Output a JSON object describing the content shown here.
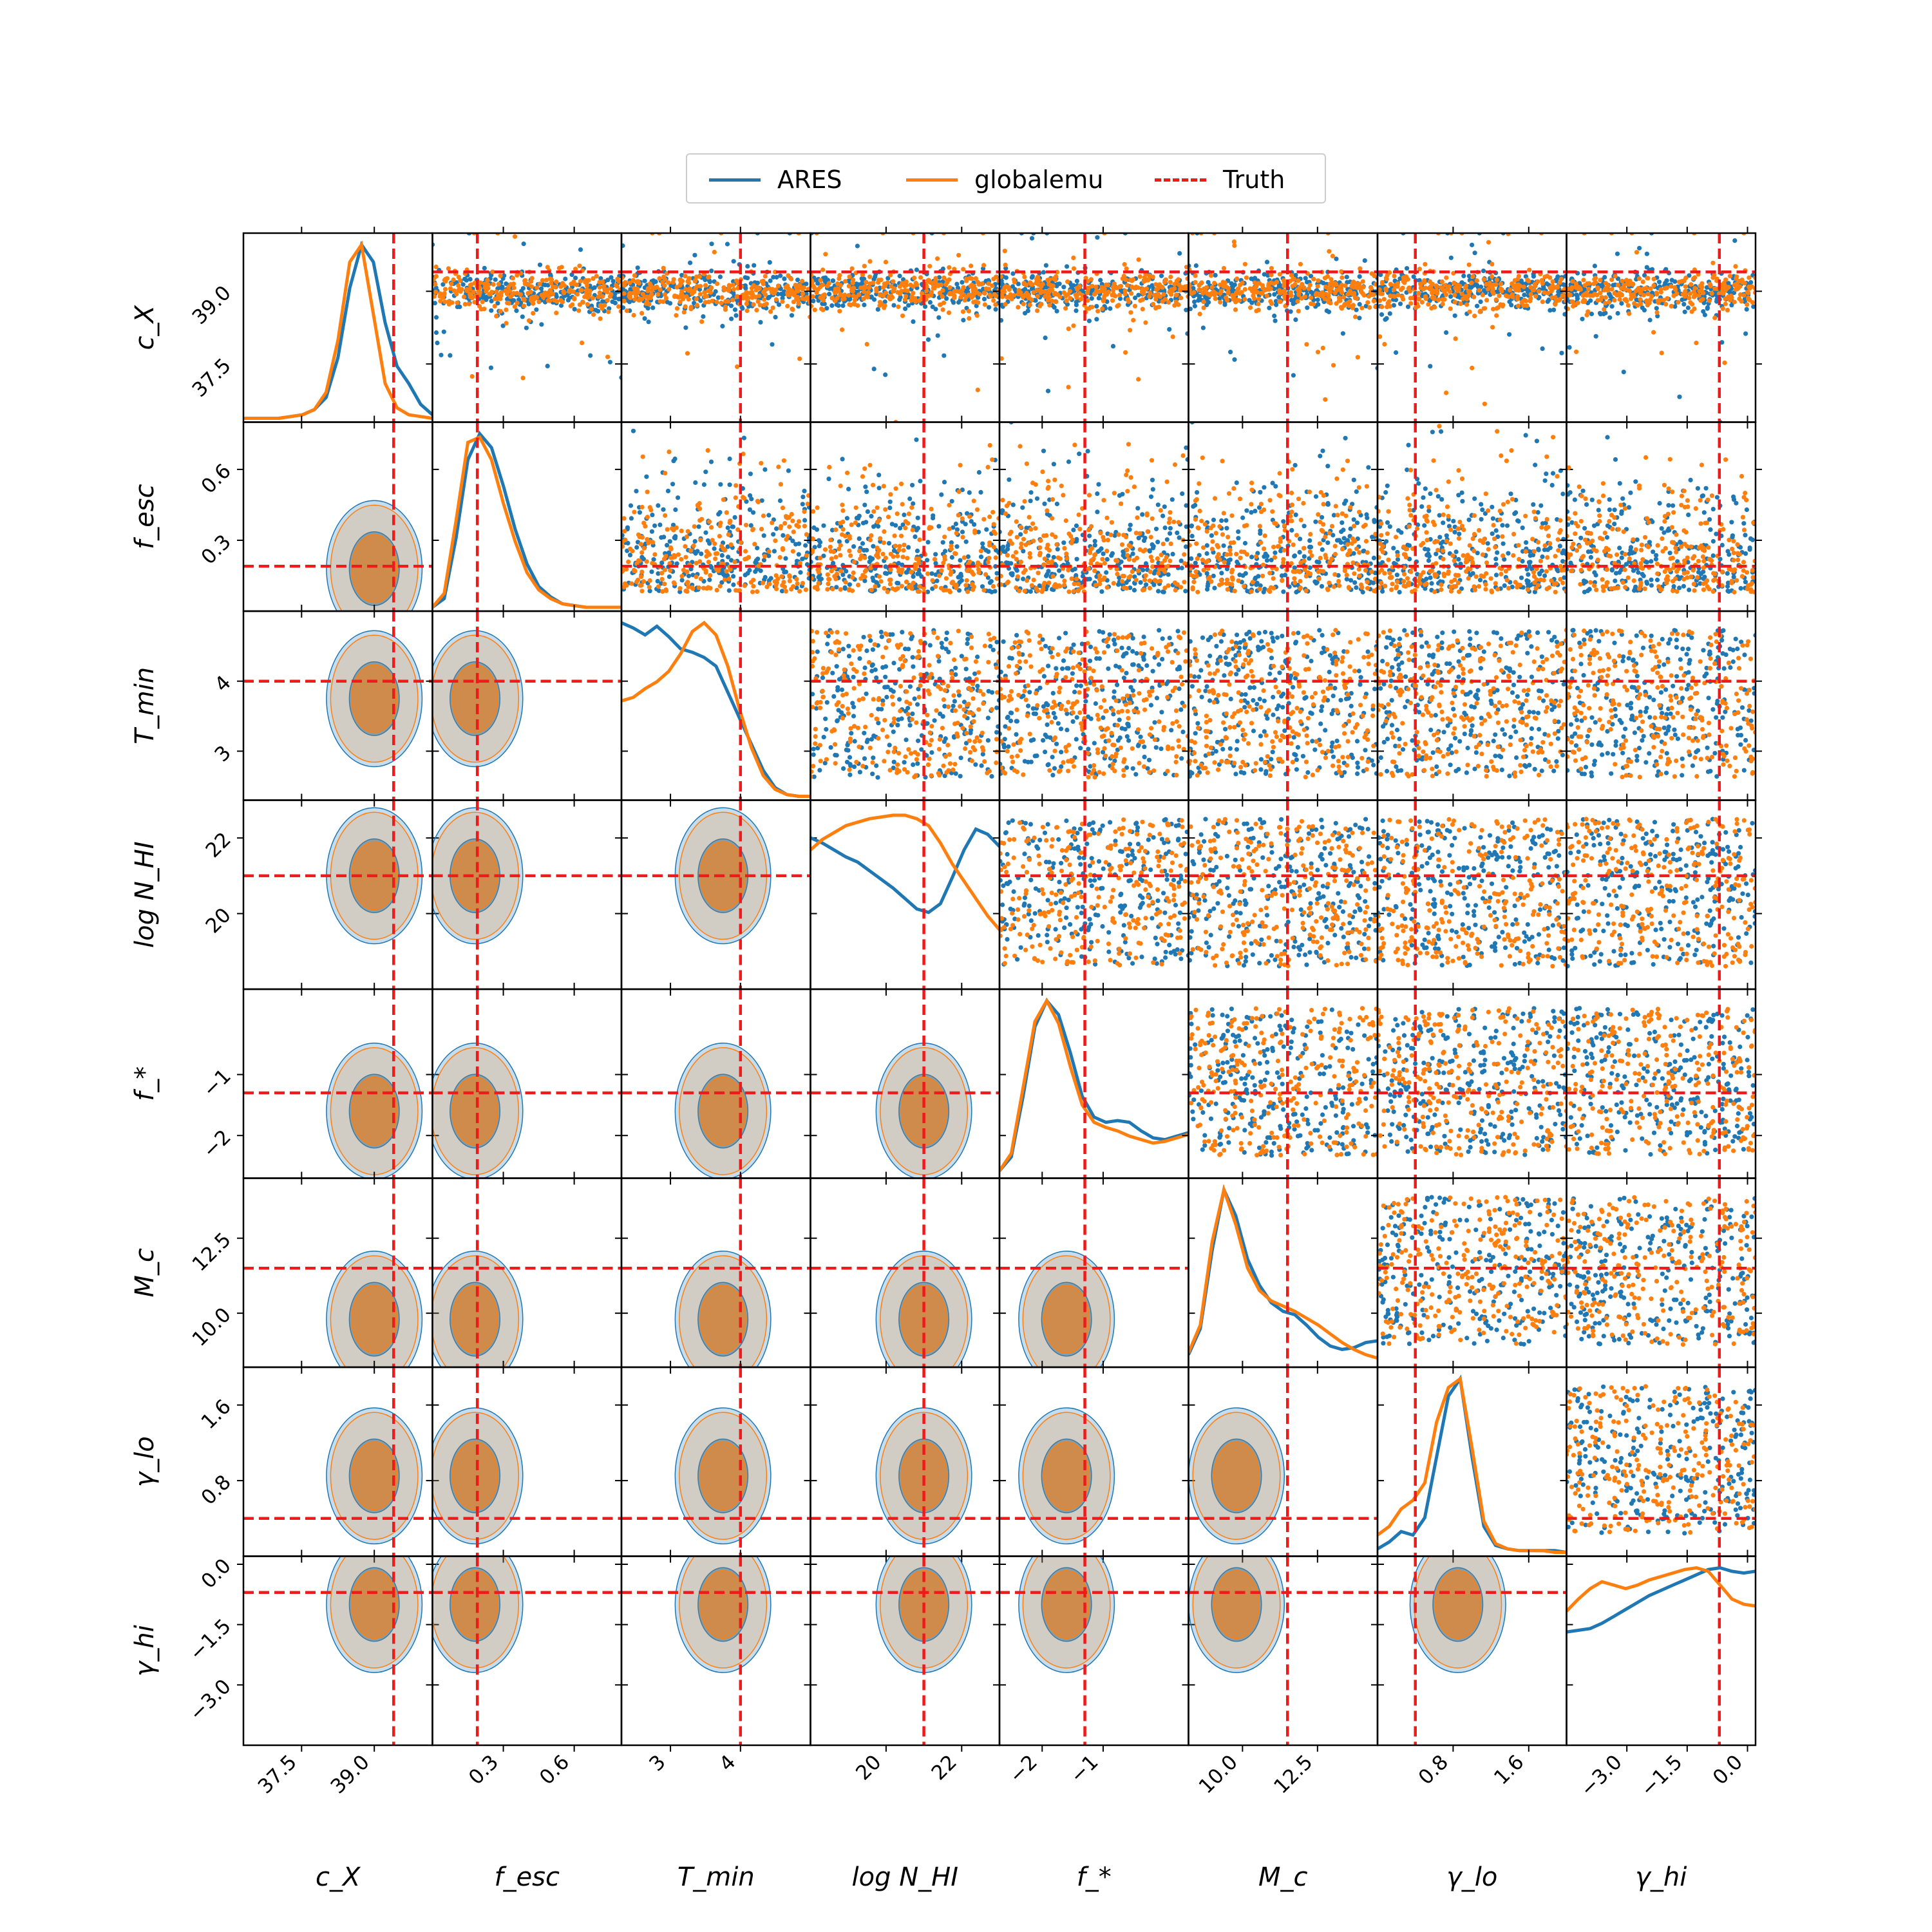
{
  "legend": {
    "entries": [
      {
        "label": "ARES",
        "color": "#1f77b4",
        "style": "solid"
      },
      {
        "label": "globalemu",
        "color": "#ff7f0e",
        "style": "solid"
      },
      {
        "label": "Truth",
        "color": "#ee1b1b",
        "style": "dashed"
      }
    ]
  },
  "chart_data": {
    "type": "scatter",
    "subtype": "corner-plot",
    "title": "",
    "colors": {
      "ares": "#1f77b4",
      "globalemu": "#ff7f0e",
      "truth": "#ee1b1b"
    },
    "upper_triangle": "scatter samples (ARES, globalemu)",
    "lower_triangle": "filled 68%/95% density contours (ARES, globalemu)",
    "diagonal": "1D marginal density curves",
    "grid": false,
    "legend_position": "top-center",
    "series": [
      {
        "name": "ARES",
        "color": "#1f77b4"
      },
      {
        "name": "globalemu",
        "color": "#ff7f0e"
      },
      {
        "name": "Truth",
        "color": "#ee1b1b",
        "style": "dashed"
      }
    ],
    "parameters": [
      {
        "key": "cX",
        "label": "c_X",
        "range": [
          36.3,
          40.2
        ],
        "ticks": [
          37.5,
          39.0
        ],
        "tick_labels": [
          "37.5",
          "39.0"
        ],
        "truth": 39.4,
        "peak": 39.0
      },
      {
        "key": "fesc",
        "label": "f_esc",
        "range": [
          0.0,
          0.8
        ],
        "ticks": [
          0.3,
          0.6
        ],
        "tick_labels": [
          "0.3",
          "0.6"
        ],
        "truth": 0.19,
        "peak": 0.18
      },
      {
        "key": "Tmin",
        "label": "T_min",
        "range": [
          2.3,
          5.0
        ],
        "ticks": [
          3,
          4
        ],
        "tick_labels": [
          "3",
          "4"
        ],
        "truth": 4.0,
        "peak": 3.75
      },
      {
        "key": "logNHI",
        "label": "log N_HI",
        "range": [
          18.0,
          23.0
        ],
        "ticks": [
          20,
          22
        ],
        "tick_labels": [
          "20",
          "22"
        ],
        "truth": 21.0,
        "peak": 21.0
      },
      {
        "key": "fstar",
        "label": "f_*",
        "range": [
          -2.7,
          0.4
        ],
        "ticks": [
          -2,
          -1
        ],
        "tick_labels": [
          "−2",
          "−1"
        ],
        "truth": -1.3,
        "peak": -1.6
      },
      {
        "key": "Mc",
        "label": "M_c",
        "range": [
          8.2,
          14.5
        ],
        "ticks": [
          10.0,
          12.5
        ],
        "tick_labels": [
          "10.0",
          "12.5"
        ],
        "truth": 11.5,
        "peak": 9.8
      },
      {
        "key": "gammalo",
        "label": "γ_lo",
        "range": [
          0.0,
          2.0
        ],
        "ticks": [
          0.8,
          1.6
        ],
        "tick_labels": [
          "0.8",
          "1.6"
        ],
        "truth": 0.4,
        "peak": 0.85
      },
      {
        "key": "gammahi",
        "label": "γ_hi",
        "range": [
          -4.5,
          0.2
        ],
        "ticks": [
          -3.0,
          -1.5,
          0.0
        ],
        "tick_labels": [
          "−3.0",
          "−1.5",
          "0.0"
        ],
        "truth": -0.7,
        "peak": -1.0
      }
    ],
    "marginals": {
      "cX": {
        "ARES": [
          0,
          0,
          0,
          0,
          0.01,
          0.02,
          0.05,
          0.12,
          0.35,
          0.75,
          1.0,
          0.9,
          0.55,
          0.3,
          0.2,
          0.08,
          0.02
        ],
        "globalemu": [
          0,
          0,
          0,
          0,
          0.01,
          0.02,
          0.05,
          0.15,
          0.45,
          0.9,
          1.0,
          0.6,
          0.2,
          0.06,
          0.02,
          0.01,
          0
        ]
      },
      "fesc": {
        "ARES": [
          0,
          0.05,
          0.4,
          0.85,
          1.0,
          0.92,
          0.7,
          0.45,
          0.25,
          0.12,
          0.06,
          0.02,
          0.01,
          0,
          0,
          0,
          0
        ],
        "globalemu": [
          0,
          0.08,
          0.5,
          0.95,
          0.98,
          0.85,
          0.6,
          0.38,
          0.2,
          0.1,
          0.05,
          0.02,
          0.01,
          0,
          0,
          0,
          0
        ]
      },
      "Tmin": {
        "ARES": [
          1.0,
          0.97,
          0.93,
          0.98,
          0.92,
          0.85,
          0.83,
          0.8,
          0.75,
          0.6,
          0.45,
          0.3,
          0.15,
          0.05,
          0.01,
          0,
          0
        ],
        "globalemu": [
          0.55,
          0.57,
          0.62,
          0.66,
          0.72,
          0.82,
          0.95,
          1.0,
          0.93,
          0.75,
          0.5,
          0.28,
          0.12,
          0.04,
          0.01,
          0,
          0
        ]
      },
      "logNHI": {
        "ARES": [
          0.85,
          0.82,
          0.78,
          0.74,
          0.71,
          0.66,
          0.61,
          0.56,
          0.5,
          0.44,
          0.42,
          0.47,
          0.62,
          0.78,
          0.9,
          0.87,
          0.8
        ],
        "globalemu": [
          0.78,
          0.84,
          0.88,
          0.92,
          0.94,
          0.96,
          0.97,
          0.98,
          0.98,
          0.96,
          0.92,
          0.82,
          0.7,
          0.6,
          0.5,
          0.4,
          0.32
        ]
      },
      "fstar": {
        "ARES": [
          0.02,
          0.1,
          0.45,
          0.85,
          1.0,
          0.92,
          0.7,
          0.45,
          0.33,
          0.3,
          0.31,
          0.3,
          0.25,
          0.21,
          0.2,
          0.22,
          0.24
        ],
        "globalemu": [
          0.02,
          0.12,
          0.5,
          0.88,
          1.0,
          0.87,
          0.62,
          0.4,
          0.3,
          0.27,
          0.25,
          0.22,
          0.2,
          0.18,
          0.19,
          0.21,
          0.23
        ]
      },
      "Mc": {
        "ARES": [
          0.05,
          0.2,
          0.65,
          1.0,
          0.85,
          0.6,
          0.45,
          0.35,
          0.3,
          0.28,
          0.22,
          0.15,
          0.1,
          0.08,
          0.09,
          0.12,
          0.13
        ],
        "globalemu": [
          0.06,
          0.22,
          0.7,
          1.0,
          0.8,
          0.55,
          0.42,
          0.36,
          0.33,
          0.3,
          0.26,
          0.22,
          0.17,
          0.12,
          0.08,
          0.05,
          0.03
        ]
      },
      "gammalo": {
        "ARES": [
          0.02,
          0.06,
          0.12,
          0.1,
          0.2,
          0.55,
          0.9,
          1.0,
          0.55,
          0.15,
          0.04,
          0.02,
          0.01,
          0.01,
          0.01,
          0.01,
          0
        ],
        "globalemu": [
          0.1,
          0.15,
          0.25,
          0.3,
          0.4,
          0.75,
          0.95,
          1.0,
          0.6,
          0.18,
          0.05,
          0.02,
          0.01,
          0.01,
          0.01,
          0,
          0
        ]
      },
      "gammahi": {
        "ARES": [
          0.63,
          0.64,
          0.65,
          0.68,
          0.72,
          0.76,
          0.8,
          0.84,
          0.87,
          0.9,
          0.93,
          0.96,
          0.99,
          1.0,
          0.98,
          0.97,
          0.98
        ],
        "globalemu": [
          0.75,
          0.82,
          0.88,
          0.92,
          0.9,
          0.88,
          0.9,
          0.93,
          0.95,
          0.97,
          0.99,
          1.0,
          0.98,
          0.9,
          0.82,
          0.79,
          0.78
        ]
      }
    }
  }
}
